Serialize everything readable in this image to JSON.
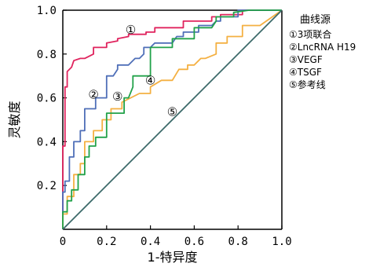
{
  "chart_data": {
    "type": "line",
    "xlabel": "1-特异度",
    "ylabel": "灵敏度",
    "xlim": [
      0,
      1
    ],
    "ylim": [
      0,
      1
    ],
    "x_ticks": [
      "0",
      "0.2",
      "0.4",
      "0.6",
      "0.8",
      "1.0"
    ],
    "y_ticks": [
      "0.2",
      "0.4",
      "0.6",
      "0.8",
      "1.0"
    ],
    "grid": false,
    "legend_title": "曲线源",
    "legend_placement": "right",
    "series": [
      {
        "name": "①3项联合",
        "marker": "①",
        "color": "#e0245e",
        "x": [
          0,
          0,
          0.01,
          0.01,
          0.02,
          0.02,
          0.04,
          0.05,
          0.08,
          0.1,
          0.14,
          0.14,
          0.2,
          0.2,
          0.25,
          0.25,
          0.3,
          0.3,
          0.38,
          0.38,
          0.42,
          0.42,
          0.55,
          0.55,
          0.68,
          0.68,
          0.72,
          0.72,
          0.82,
          0.82,
          0.88,
          1.0
        ],
        "y": [
          0,
          0.38,
          0.38,
          0.65,
          0.65,
          0.72,
          0.74,
          0.77,
          0.78,
          0.78,
          0.8,
          0.83,
          0.83,
          0.85,
          0.86,
          0.87,
          0.88,
          0.89,
          0.89,
          0.9,
          0.9,
          0.92,
          0.92,
          0.95,
          0.95,
          0.97,
          0.97,
          0.98,
          0.98,
          1.0,
          1.0,
          1.0
        ]
      },
      {
        "name": "②LncRNA H19",
        "marker": "②",
        "color": "#4f6fb8",
        "x": [
          0,
          0,
          0.01,
          0.01,
          0.03,
          0.03,
          0.05,
          0.05,
          0.08,
          0.08,
          0.1,
          0.1,
          0.15,
          0.15,
          0.2,
          0.2,
          0.23,
          0.25,
          0.25,
          0.3,
          0.33,
          0.35,
          0.37,
          0.37,
          0.4,
          0.42,
          0.5,
          0.52,
          0.55,
          0.55,
          0.62,
          0.62,
          0.68,
          0.7,
          0.72,
          0.72,
          0.8,
          0.8,
          0.9,
          1.0
        ],
        "y": [
          0,
          0.17,
          0.17,
          0.22,
          0.22,
          0.33,
          0.33,
          0.4,
          0.4,
          0.45,
          0.45,
          0.55,
          0.55,
          0.6,
          0.6,
          0.7,
          0.7,
          0.73,
          0.75,
          0.75,
          0.78,
          0.78,
          0.8,
          0.83,
          0.83,
          0.85,
          0.85,
          0.88,
          0.88,
          0.9,
          0.9,
          0.93,
          0.93,
          0.95,
          0.95,
          0.97,
          0.97,
          1.0,
          1.0,
          1.0
        ]
      },
      {
        "name": "③VEGF",
        "marker": "③",
        "color": "#f4b042",
        "x": [
          0,
          0,
          0.02,
          0.02,
          0.05,
          0.05,
          0.08,
          0.08,
          0.1,
          0.1,
          0.14,
          0.14,
          0.18,
          0.18,
          0.22,
          0.22,
          0.27,
          0.27,
          0.35,
          0.4,
          0.4,
          0.45,
          0.5,
          0.53,
          0.57,
          0.57,
          0.6,
          0.63,
          0.65,
          0.7,
          0.7,
          0.75,
          0.75,
          0.82,
          0.82,
          0.9,
          1.0
        ],
        "y": [
          0,
          0.07,
          0.07,
          0.15,
          0.15,
          0.25,
          0.25,
          0.3,
          0.3,
          0.4,
          0.4,
          0.45,
          0.45,
          0.5,
          0.5,
          0.55,
          0.55,
          0.58,
          0.62,
          0.62,
          0.65,
          0.68,
          0.68,
          0.73,
          0.73,
          0.75,
          0.75,
          0.78,
          0.78,
          0.8,
          0.85,
          0.85,
          0.88,
          0.88,
          0.93,
          0.93,
          1.0
        ]
      },
      {
        "name": "④TSGF",
        "marker": "④",
        "color": "#22a24a",
        "x": [
          0,
          0,
          0.02,
          0.02,
          0.04,
          0.04,
          0.07,
          0.07,
          0.1,
          0.1,
          0.12,
          0.12,
          0.15,
          0.15,
          0.2,
          0.2,
          0.28,
          0.28,
          0.3,
          0.32,
          0.32,
          0.4,
          0.4,
          0.5,
          0.5,
          0.6,
          0.6,
          0.68,
          0.7,
          0.7,
          0.78,
          0.78,
          0.85,
          1.0
        ],
        "y": [
          0,
          0.08,
          0.08,
          0.13,
          0.13,
          0.18,
          0.18,
          0.25,
          0.25,
          0.33,
          0.33,
          0.38,
          0.38,
          0.42,
          0.42,
          0.53,
          0.53,
          0.6,
          0.6,
          0.65,
          0.7,
          0.7,
          0.83,
          0.83,
          0.87,
          0.87,
          0.92,
          0.92,
          0.95,
          0.97,
          0.97,
          0.99,
          1.0,
          1.0
        ]
      },
      {
        "name": "⑤参考线",
        "marker": "⑤",
        "color": "#3d6b6b",
        "x": [
          0,
          1
        ],
        "y": [
          0,
          1
        ]
      }
    ],
    "curve_labels": [
      {
        "text": "①",
        "x": 0.31,
        "y": 0.91
      },
      {
        "text": "②",
        "x": 0.14,
        "y": 0.615
      },
      {
        "text": "③",
        "x": 0.25,
        "y": 0.605
      },
      {
        "text": "④",
        "x": 0.4,
        "y": 0.68
      },
      {
        "text": "⑤",
        "x": 0.5,
        "y": 0.535
      }
    ]
  }
}
